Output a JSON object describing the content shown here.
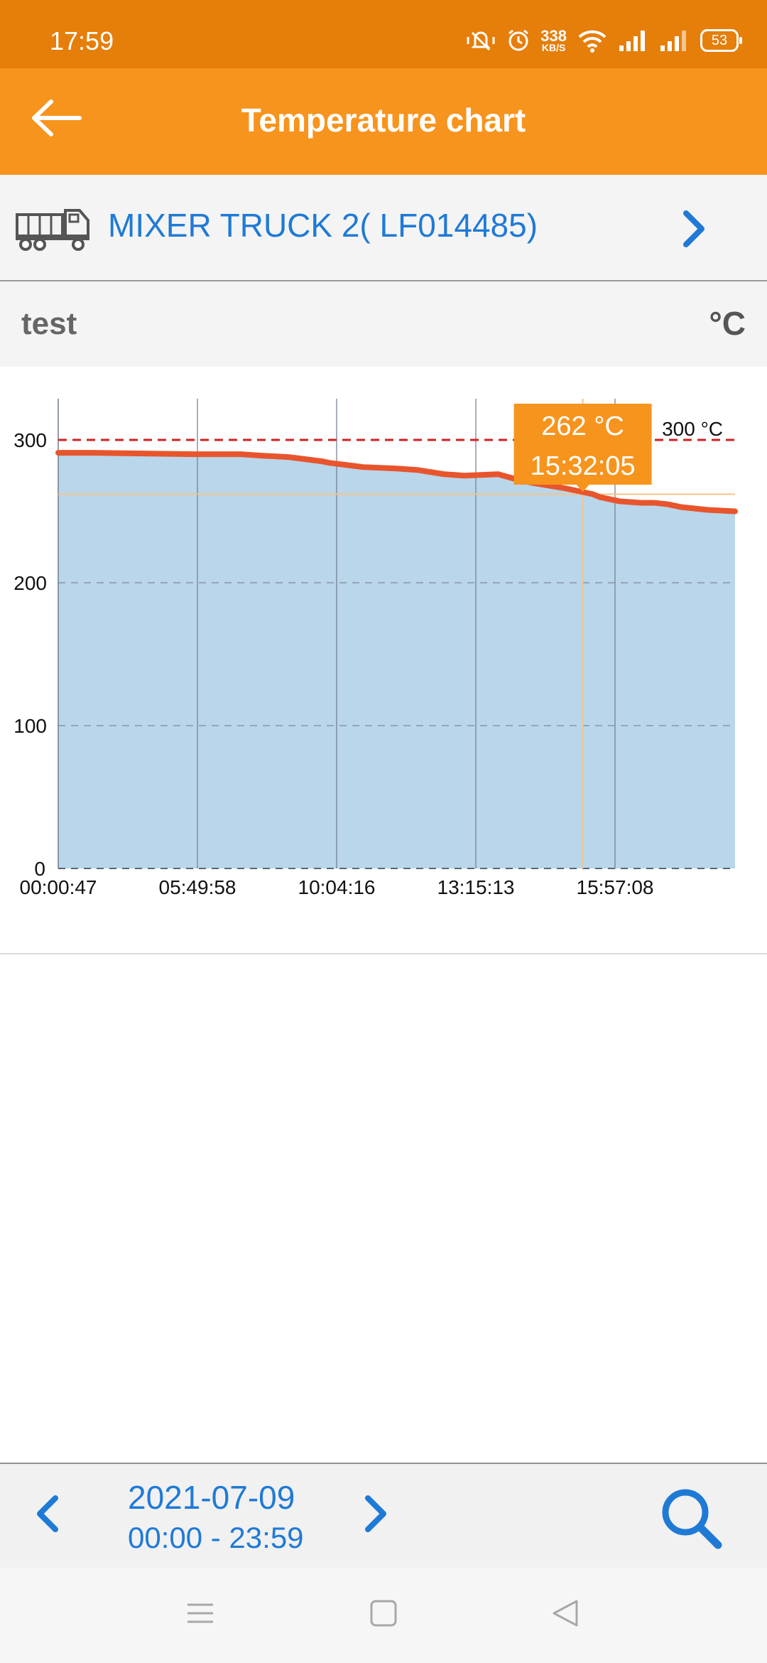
{
  "status_bar": {
    "time": "17:59",
    "speed_value": "338",
    "speed_unit": "KB/S",
    "battery": "53"
  },
  "app_bar": {
    "title": "Temperature chart",
    "back_icon": "arrow-left-icon"
  },
  "vehicle": {
    "name": "MIXER TRUCK 2( LF014485)",
    "icon": "truck-icon"
  },
  "sensor": {
    "name": "test",
    "unit": "°C"
  },
  "colors": {
    "status_bar": "#e67e0a",
    "app_bar": "#f7941d",
    "accent": "#1f7ad6",
    "line": "#e8552d",
    "area": "#b9d6eb",
    "threshold": "#cc2222",
    "tooltip": "#f7941d"
  },
  "chart_data": {
    "type": "area",
    "title": "",
    "xlabel": "",
    "ylabel": "°C",
    "ylim": [
      0,
      330
    ],
    "yticks": [
      0,
      100,
      200,
      300
    ],
    "x_tick_labels": [
      "00:00:47",
      "05:49:58",
      "10:04:16",
      "13:15:13",
      "15:57:08"
    ],
    "series": [
      {
        "name": "test",
        "x": [
          0,
          0.05,
          0.2,
          0.27,
          0.3,
          0.34,
          0.39,
          0.4,
          0.45,
          0.5,
          0.53,
          0.57,
          0.6,
          0.65,
          0.68,
          0.7,
          0.75,
          0.77,
          0.79,
          0.8,
          0.83,
          0.86,
          0.88,
          0.9,
          0.92,
          0.94,
          0.96,
          1.0
        ],
        "y": [
          291,
          291,
          290,
          290,
          289,
          288,
          285,
          284,
          281,
          280,
          279,
          276,
          275,
          276,
          272,
          270,
          266,
          264,
          262,
          260,
          257,
          256,
          256,
          255,
          253,
          252,
          251,
          250
        ]
      }
    ],
    "threshold": {
      "value": 300,
      "label": "300 °C"
    },
    "tooltip": {
      "value_label": "262 °C",
      "time_label": "15:32:05",
      "x": 0.775,
      "y": 262
    }
  },
  "date_bar": {
    "date": "2021-07-09",
    "range": "00:00 - 23:59"
  }
}
